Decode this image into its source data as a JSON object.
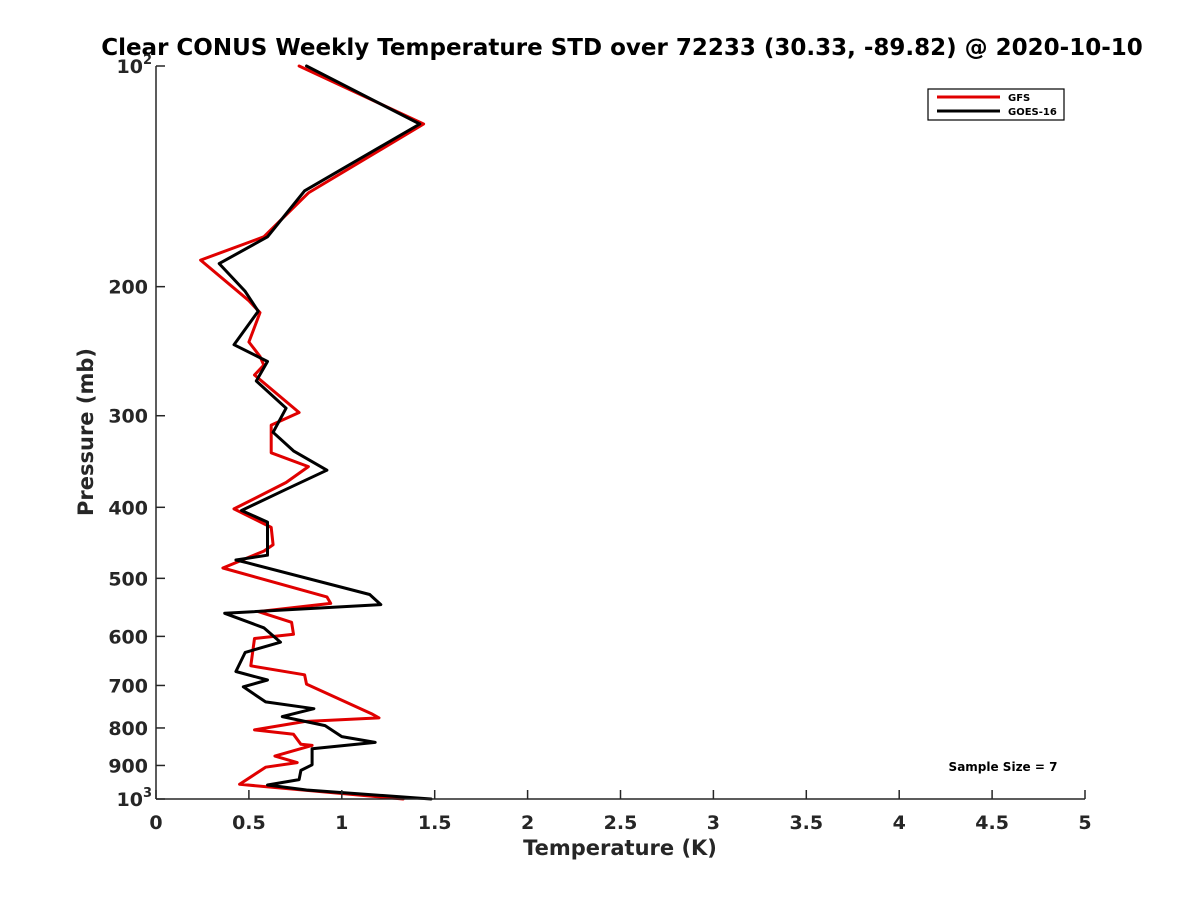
{
  "chart_data": {
    "type": "line",
    "title": "Clear CONUS Weekly Temperature STD over 72233 (30.33, -89.82) @ 2020-10-10",
    "xlabel": "Temperature (K)",
    "ylabel": "Pressure (mb)",
    "xlim": [
      0,
      5
    ],
    "ylim": [
      100,
      1000
    ],
    "y_scale": "log",
    "y_reversed": true,
    "x_ticks": [
      0,
      0.5,
      1,
      1.5,
      2,
      2.5,
      3,
      3.5,
      4,
      4.5,
      5
    ],
    "x_tick_labels": [
      "0",
      "0.5",
      "1",
      "1.5",
      "2",
      "2.5",
      "3",
      "3.5",
      "4",
      "4.5",
      "5"
    ],
    "y_ticks": [
      100,
      200,
      300,
      400,
      500,
      600,
      700,
      800,
      900,
      1000
    ],
    "y_tick_labels": [
      {
        "base": "10",
        "sup": "2"
      },
      {
        "base": "200",
        "sup": ""
      },
      {
        "base": "300",
        "sup": ""
      },
      {
        "base": "400",
        "sup": ""
      },
      {
        "base": "500",
        "sup": ""
      },
      {
        "base": "600",
        "sup": ""
      },
      {
        "base": "700",
        "sup": ""
      },
      {
        "base": "800",
        "sup": ""
      },
      {
        "base": "900",
        "sup": ""
      },
      {
        "base": "10",
        "sup": "3"
      }
    ],
    "grid": false,
    "legend_position": "top-right",
    "annotation": "Sample Size = 7",
    "series": [
      {
        "name": "GFS",
        "color": "#e00000",
        "points": [
          [
            0.77,
            100
          ],
          [
            1.44,
            120
          ],
          [
            0.82,
            149
          ],
          [
            0.58,
            171
          ],
          [
            0.24,
            184
          ],
          [
            0.5,
            209
          ],
          [
            0.56,
            217
          ],
          [
            0.5,
            238
          ],
          [
            0.56,
            249
          ],
          [
            0.58,
            256
          ],
          [
            0.53,
            264
          ],
          [
            0.77,
            297
          ],
          [
            0.62,
            309
          ],
          [
            0.62,
            337
          ],
          [
            0.82,
            352
          ],
          [
            0.7,
            370
          ],
          [
            0.42,
            402
          ],
          [
            0.62,
            426
          ],
          [
            0.63,
            450
          ],
          [
            0.58,
            459
          ],
          [
            0.36,
            484
          ],
          [
            0.92,
            530
          ],
          [
            0.94,
            541
          ],
          [
            0.55,
            555
          ],
          [
            0.73,
            574
          ],
          [
            0.74,
            596
          ],
          [
            0.53,
            604
          ],
          [
            0.51,
            658
          ],
          [
            0.8,
            677
          ],
          [
            0.81,
            697
          ],
          [
            1.16,
            765
          ],
          [
            1.2,
            775
          ],
          [
            0.8,
            784
          ],
          [
            0.53,
            805
          ],
          [
            0.74,
            816
          ],
          [
            0.78,
            842
          ],
          [
            0.84,
            845
          ],
          [
            0.64,
            874
          ],
          [
            0.76,
            892
          ],
          [
            0.59,
            905
          ],
          [
            0.45,
            955
          ],
          [
            1.33,
            1000
          ]
        ]
      },
      {
        "name": "GOES-16",
        "color": "#000000",
        "points": [
          [
            0.81,
            100
          ],
          [
            1.42,
            120
          ],
          [
            0.8,
            148
          ],
          [
            0.6,
            171
          ],
          [
            0.34,
            186
          ],
          [
            0.48,
            203
          ],
          [
            0.55,
            216
          ],
          [
            0.42,
            240
          ],
          [
            0.6,
            253
          ],
          [
            0.54,
            269
          ],
          [
            0.7,
            293
          ],
          [
            0.63,
            316
          ],
          [
            0.74,
            335
          ],
          [
            0.92,
            356
          ],
          [
            0.7,
            378
          ],
          [
            0.46,
            404
          ],
          [
            0.6,
            419
          ],
          [
            0.6,
            465
          ],
          [
            0.43,
            472
          ],
          [
            0.49,
            476
          ],
          [
            1.15,
            526
          ],
          [
            1.21,
            543
          ],
          [
            0.37,
            558
          ],
          [
            0.58,
            584
          ],
          [
            0.67,
            611
          ],
          [
            0.48,
            631
          ],
          [
            0.43,
            670
          ],
          [
            0.6,
            688
          ],
          [
            0.47,
            703
          ],
          [
            0.59,
            737
          ],
          [
            0.85,
            753
          ],
          [
            0.68,
            772
          ],
          [
            0.91,
            794
          ],
          [
            1.0,
            822
          ],
          [
            1.18,
            837
          ],
          [
            0.84,
            854
          ],
          [
            0.84,
            898
          ],
          [
            0.78,
            914
          ],
          [
            0.77,
            941
          ],
          [
            0.6,
            957
          ],
          [
            0.81,
            972
          ],
          [
            1.48,
            1000
          ]
        ]
      }
    ]
  }
}
